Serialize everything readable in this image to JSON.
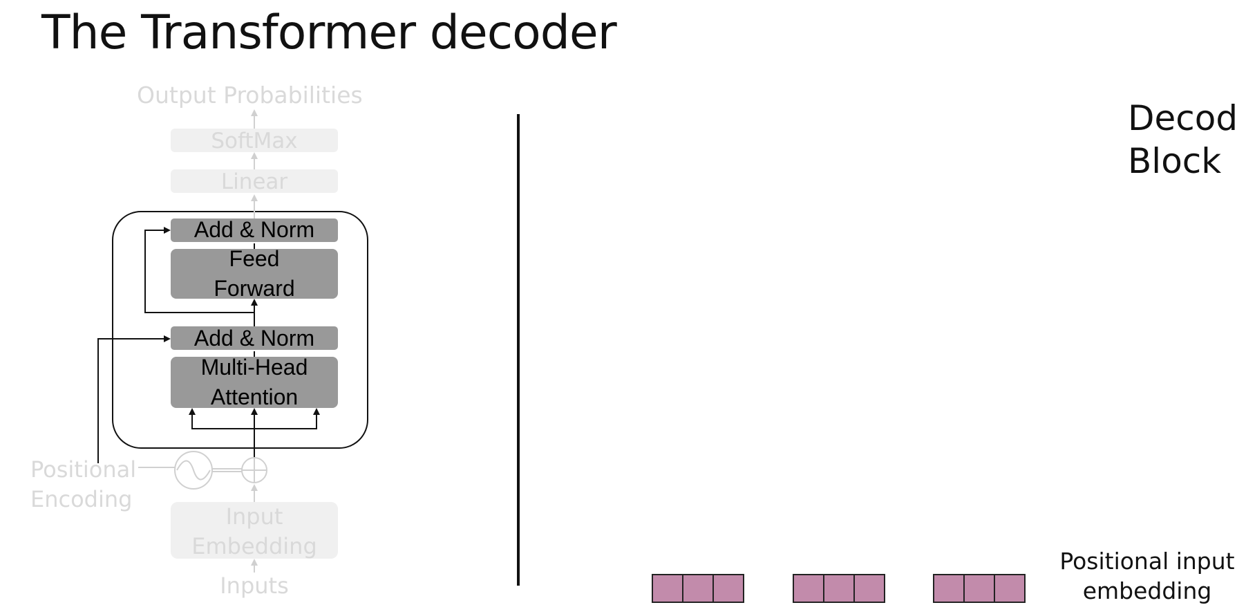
{
  "title": "The Transformer decoder",
  "diagram": {
    "output_probabilities": "Output Probabilities",
    "softmax": "SoftMax",
    "linear": "Linear",
    "add_norm_top": "Add & Norm",
    "feed_forward_line1": "Feed",
    "feed_forward_line2": "Forward",
    "add_norm_bottom": "Add & Norm",
    "mha_line1": "Multi-Head",
    "mha_line2": "Attention",
    "positional_line1": "Positional",
    "positional_line2": "Encoding",
    "input_emb_line1": "Input",
    "input_emb_line2": "Embedding",
    "inputs": "Inputs"
  },
  "right_panel": {
    "decoder_line1": "Decoder",
    "decoder_line2": "Block",
    "pos_input_line1": "Positional input",
    "pos_input_line2": "embedding",
    "embedding_groups": 3,
    "cells_per_group": 3
  },
  "colors": {
    "embedding_cell": "#c28bab",
    "faded_text": "#d9d9d9",
    "block_fill": "#999999"
  }
}
